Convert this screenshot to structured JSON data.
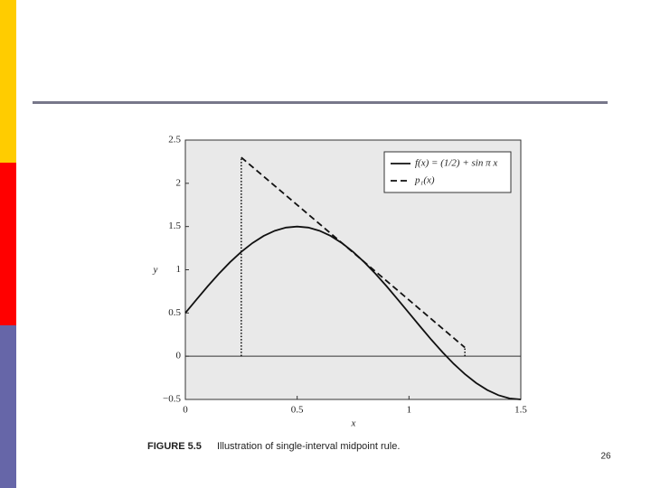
{
  "chart_data": {
    "type": "line",
    "xlabel": "x",
    "ylabel": "y",
    "caption_label": "FIGURE 5.5",
    "caption": "Illustration of single-interval midpoint rule.",
    "page_number": "26",
    "xlim": [
      0,
      1.5
    ],
    "ylim": [
      -0.5,
      2.5
    ],
    "xticks": [
      0,
      0.5,
      1,
      1.5
    ],
    "yticks": [
      {
        "value": -0.5,
        "label": "−0.5"
      },
      0,
      0.5,
      1,
      1.5,
      2,
      2.5
    ],
    "legend": "upper right",
    "series": [
      {
        "name": "f(x) = (1/2) + sin π x",
        "color": "#111",
        "dash": "solid",
        "x": [
          0,
          0.05,
          0.1,
          0.15,
          0.2,
          0.25,
          0.3,
          0.35,
          0.4,
          0.45,
          0.5,
          0.55,
          0.6,
          0.65,
          0.7,
          0.75,
          0.8,
          0.85,
          0.9,
          0.95,
          1.0,
          1.05,
          1.1,
          1.15,
          1.2,
          1.25,
          1.3,
          1.35,
          1.4,
          1.45,
          1.5
        ],
        "values": [
          0.5,
          0.656,
          0.809,
          0.954,
          1.088,
          1.207,
          1.309,
          1.391,
          1.451,
          1.488,
          1.5,
          1.488,
          1.451,
          1.391,
          1.309,
          1.207,
          1.088,
          0.954,
          0.809,
          0.656,
          0.5,
          0.344,
          0.191,
          0.046,
          -0.088,
          -0.207,
          -0.309,
          -0.391,
          -0.451,
          -0.488,
          -0.5
        ]
      },
      {
        "name": "p₁(x)",
        "color": "#111",
        "dash": "dashed",
        "x": [
          0.25,
          1.25
        ],
        "values": [
          2.3,
          0.1
        ]
      }
    ]
  }
}
